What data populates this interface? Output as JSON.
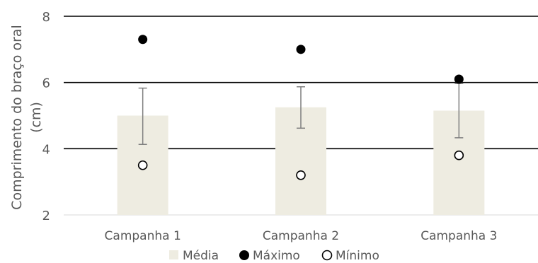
{
  "chart_data": {
    "type": "bar",
    "categories": [
      "Campanha 1",
      "Campanha 2",
      "Campanha 3"
    ],
    "series": [
      {
        "name": "Média",
        "kind": "bar",
        "values": [
          5.0,
          5.25,
          5.15
        ],
        "error_low": [
          4.13,
          4.62,
          4.33
        ],
        "error_high": [
          5.83,
          5.87,
          5.97
        ],
        "color": "#eeece1"
      },
      {
        "name": "Máximo",
        "kind": "marker-filled",
        "values": [
          7.3,
          7.0,
          6.1
        ],
        "color": "#000000"
      },
      {
        "name": "Mínimo",
        "kind": "marker-open",
        "values": [
          3.5,
          3.2,
          3.8
        ],
        "color": "#000000"
      }
    ],
    "ylabel": "Comprimento do braço oral (cm)",
    "ylabel_lines": [
      "Comprimento do braço oral",
      "(cm)"
    ],
    "xlabel": "",
    "ylim": [
      2,
      8
    ],
    "yticks": [
      2,
      4,
      6,
      8
    ],
    "grid": true,
    "legend_position": "bottom"
  }
}
